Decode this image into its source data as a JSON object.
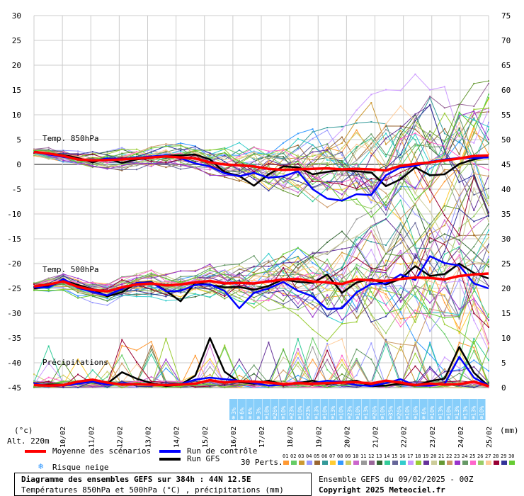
{
  "chart_data": {
    "type": "line",
    "left_axis": {
      "label": "(°c)",
      "ticks": [
        30,
        25,
        20,
        15,
        10,
        5,
        0,
        -5,
        -10,
        -15,
        -20,
        -25,
        -30,
        -35,
        -40,
        -45
      ],
      "range": [
        -45,
        30
      ]
    },
    "right_axis": {
      "label": "(mm)",
      "ticks": [
        75,
        70,
        65,
        60,
        55,
        50,
        45,
        40,
        35,
        30,
        25,
        20,
        15,
        10,
        5,
        0
      ],
      "range": [
        0,
        75
      ]
    },
    "x_dates": [
      "10/02",
      "11/02",
      "12/02",
      "13/02",
      "14/02",
      "15/02",
      "16/02",
      "17/02",
      "18/02",
      "19/02",
      "20/02",
      "21/02",
      "22/02",
      "23/02",
      "24/02",
      "25/02"
    ],
    "sections": {
      "t850": "Temp. 850hPa",
      "t500": "Temp. 500hPa",
      "precip": "Précipitations"
    },
    "snow_risk_pct": [
      "3%",
      "6%",
      "6%",
      "3%",
      "10%",
      "26%",
      "10%",
      "23%",
      "10%",
      "23%",
      "13%",
      "10%",
      "13%",
      "10%",
      "23%",
      "10%",
      "13%",
      "26%",
      "10%",
      "35%",
      "26%",
      "10%",
      "10%",
      "6%",
      "10%",
      "13%",
      "10%",
      "13%",
      "13%",
      "13%",
      "10%"
    ],
    "series": [
      {
        "name": "Moyenne des scénarios",
        "color": "#ff0000",
        "t850": [
          2.5,
          2.2,
          1.7,
          1.0,
          0.8,
          0.9,
          1.0,
          1.2,
          1.4,
          1.6,
          1.4,
          1.2,
          0.4,
          0.0,
          -0.2,
          -0.4,
          -0.9,
          -1.1,
          -1.0,
          -0.9,
          -0.8,
          -1.0,
          -0.9,
          -1.0,
          -1.2,
          -0.3,
          0.1,
          0.4,
          0.8,
          1.2,
          1.7,
          1.8
        ],
        "t500": [
          -24.6,
          -24.2,
          -23.6,
          -24.7,
          -25.3,
          -25.6,
          -24.8,
          -24.2,
          -24.0,
          -24.4,
          -24.2,
          -23.8,
          -23.5,
          -24.0,
          -23.9,
          -24.0,
          -23.6,
          -23.2,
          -23.1,
          -23.6,
          -23.8,
          -24.1,
          -23.2,
          -23.4,
          -23.5,
          -23.1,
          -22.8,
          -22.9,
          -23.2,
          -22.5,
          -22.2,
          -22.0
        ],
        "precip": [
          0.5,
          0.4,
          0.5,
          1.2,
          1.6,
          1.0,
          0.6,
          0.7,
          0.6,
          0.5,
          0.6,
          0.8,
          1.5,
          1.0,
          1.3,
          1.2,
          1.0,
          0.7,
          0.9,
          0.8,
          0.9,
          1.0,
          1.1,
          0.8,
          1.4,
          1.0,
          0.5,
          0.8,
          0.6,
          0.7,
          1.2,
          0.3
        ]
      },
      {
        "name": "Run de contrôle",
        "color": "#0000ff",
        "t850": [
          2.5,
          2.0,
          1.5,
          1.0,
          0.7,
          1.2,
          1.1,
          1.3,
          1.6,
          1.8,
          1.2,
          0.2,
          -0.4,
          -1.8,
          -2.4,
          -1.7,
          -2.7,
          -2.4,
          -1.4,
          -5.0,
          -6.9,
          -7.3,
          -6.0,
          -6.2,
          -2.2,
          -0.6,
          -0.3,
          0.5,
          1.0,
          1.3,
          1.3,
          1.4
        ],
        "t500": [
          -24.8,
          -24.8,
          -23.1,
          -24.9,
          -25.7,
          -26.4,
          -25.1,
          -23.9,
          -23.8,
          -25.6,
          -25.5,
          -24.3,
          -24.2,
          -25.5,
          -29.0,
          -25.9,
          -25.0,
          -23.7,
          -25.5,
          -26.6,
          -29.2,
          -29.0,
          -25.8,
          -24.1,
          -24.0,
          -22.2,
          -23.3,
          -18.5,
          -19.9,
          -20.4,
          -24.0,
          -25.0
        ],
        "precip": [
          0.8,
          0.4,
          0.4,
          0.8,
          1.2,
          0.6,
          0.9,
          0.7,
          0.5,
          0.6,
          0.7,
          1.6,
          2.0,
          1.7,
          1.4,
          0.9,
          0.4,
          0.6,
          0.8,
          0.9,
          1.4,
          1.1,
          0.5,
          0.3,
          0.9,
          1.7,
          0.4,
          0.4,
          0.7,
          6.2,
          2.0,
          0.4
        ]
      },
      {
        "name": "Run GFS",
        "color": "#000000",
        "t850": [
          2.5,
          2.1,
          1.9,
          1.3,
          0.4,
          1.2,
          0.3,
          1.0,
          1.3,
          1.8,
          1.8,
          2.0,
          1.0,
          -1.6,
          -2.3,
          -4.3,
          -2.0,
          -0.4,
          -0.6,
          -2.0,
          -1.5,
          -1.1,
          -1.4,
          -1.6,
          -4.4,
          -3.0,
          -0.6,
          -2.2,
          -2.0,
          0.1,
          1.0,
          1.6
        ],
        "t500": [
          -25.0,
          -24.6,
          -23.4,
          -24.3,
          -25.2,
          -26.6,
          -25.8,
          -23.9,
          -23.7,
          -25.5,
          -27.6,
          -23.8,
          -24.3,
          -24.8,
          -24.7,
          -25.3,
          -24.5,
          -23.2,
          -23.7,
          -23.9,
          -22.2,
          -25.9,
          -23.8,
          -23.1,
          -24.2,
          -23.1,
          -20.5,
          -22.5,
          -22.1,
          -20.0,
          -21.9,
          -23.0
        ],
        "precip": [
          0.5,
          0.6,
          0.6,
          0.8,
          1.5,
          0.8,
          3.1,
          1.8,
          0.9,
          0.3,
          0.6,
          2.4,
          10.0,
          3.2,
          1.1,
          0.8,
          1.4,
          0.6,
          0.9,
          1.4,
          0.7,
          1.1,
          1.4,
          0.3,
          0.4,
          0.8,
          0.4,
          1.3,
          1.8,
          8.2,
          3.0,
          0.3
        ]
      }
    ],
    "perturbation_colors": [
      "#ff9933",
      "#66cc66",
      "#cc9933",
      "#9999ff",
      "#996633",
      "#339999",
      "#ffcc33",
      "#3399ff",
      "#cccc66",
      "#cc66cc",
      "#999999",
      "#996699",
      "#336633",
      "#33cc99",
      "#666699",
      "#33cccc",
      "#cc99ff",
      "#99cc33",
      "#663399",
      "#cccc99",
      "#669933",
      "#cc9966",
      "#9933cc",
      "#669966",
      "#ff66cc",
      "#99cc66",
      "#ffcc99",
      "#990033",
      "#333399",
      "#66cc33"
    ],
    "ylim": [
      -45,
      30
    ]
  },
  "header": {
    "alt_label": "Alt. 220m",
    "left_unit": "(°c)",
    "right_unit": "(mm)"
  },
  "legend": {
    "mean": "Moyenne des scénarios",
    "control": "Run de contrôle",
    "gfs": "Run GFS",
    "snow": "Risque neige",
    "perts": "30 Perts.",
    "pert_numbers": [
      "01",
      "02",
      "03",
      "04",
      "05",
      "06",
      "07",
      "08",
      "09",
      "10",
      "11",
      "12",
      "13",
      "14",
      "15",
      "16",
      "17",
      "18",
      "19",
      "20",
      "21",
      "22",
      "23",
      "24",
      "25",
      "26",
      "27",
      "28",
      "29",
      "30"
    ]
  },
  "footer": {
    "title": "Diagramme des ensembles GEFS sur 384h : 44N 12.5E",
    "subtitle": "Températures 850hPa et 500hPa (°C) , précipitations (mm)",
    "run": "Ensemble GEFS du 09/02/2025 - 00Z",
    "copyright": "Copyright 2025 Meteociel.fr"
  }
}
